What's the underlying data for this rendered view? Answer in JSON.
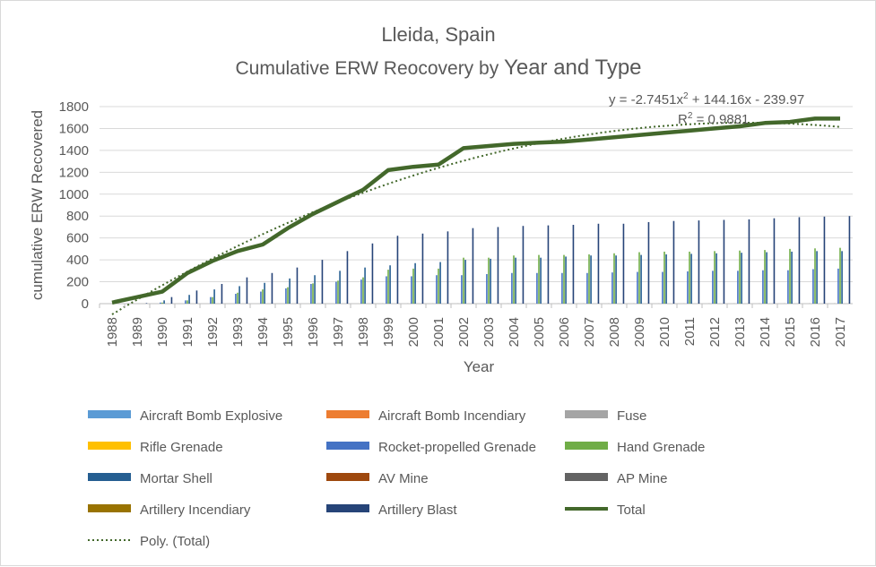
{
  "chart_data": {
    "type": "bar",
    "title": "Lleida, Spain",
    "subtitle_prefix": "Cumulative ERW Reocovery by ",
    "subtitle_suffix": "Year and Type",
    "xlabel": "Year",
    "ylabel": "cumulative ERW Recovered",
    "ylim": [
      0,
      1800
    ],
    "yticks": [
      0,
      200,
      400,
      600,
      800,
      1000,
      1200,
      1400,
      1600,
      1800
    ],
    "grid": true,
    "legend_position": "bottom",
    "categories": [
      "1988",
      "1989",
      "1990",
      "1991",
      "1992",
      "1993",
      "1994",
      "1995",
      "1996",
      "1997",
      "1998",
      "1999",
      "2000",
      "2001",
      "2002",
      "2003",
      "2004",
      "2005",
      "2006",
      "2007",
      "2008",
      "2009",
      "2010",
      "2011",
      "2012",
      "2013",
      "2014",
      "2015",
      "2016",
      "2017"
    ],
    "series": [
      {
        "name": "Aircraft Bomb Explosive",
        "color": "#5b9bd5",
        "kind": "bar",
        "values": [
          0,
          0,
          0,
          0,
          0,
          0,
          0,
          0,
          0,
          0,
          0,
          0,
          0,
          0,
          0,
          0,
          0,
          0,
          0,
          0,
          0,
          0,
          0,
          0,
          0,
          0,
          0,
          0,
          0,
          0
        ]
      },
      {
        "name": "Aircraft Bomb Incendiary",
        "color": "#ed7d31",
        "kind": "bar",
        "values": [
          0,
          0,
          0,
          0,
          0,
          0,
          0,
          0,
          0,
          0,
          0,
          0,
          0,
          0,
          0,
          0,
          0,
          0,
          0,
          0,
          0,
          0,
          0,
          0,
          0,
          0,
          0,
          0,
          0,
          0
        ]
      },
      {
        "name": "Fuse",
        "color": "#a5a5a5",
        "kind": "bar",
        "values": [
          0,
          0,
          0,
          0,
          0,
          0,
          0,
          0,
          0,
          0,
          0,
          2,
          2,
          2,
          2,
          2,
          2,
          2,
          2,
          2,
          2,
          2,
          2,
          2,
          3,
          3,
          3,
          3,
          3,
          3
        ]
      },
      {
        "name": "Rifle Grenade",
        "color": "#ffc000",
        "kind": "bar",
        "values": [
          0,
          0,
          0,
          0,
          0,
          0,
          0,
          0,
          0,
          0,
          0,
          0,
          0,
          0,
          0,
          0,
          0,
          0,
          0,
          0,
          0,
          0,
          0,
          0,
          0,
          0,
          0,
          0,
          0,
          0
        ]
      },
      {
        "name": "Rocket-propelled Grenade",
        "color": "#4472c4",
        "kind": "bar",
        "values": [
          0,
          0,
          10,
          30,
          60,
          90,
          110,
          140,
          180,
          200,
          220,
          250,
          250,
          260,
          260,
          270,
          280,
          280,
          280,
          280,
          285,
          290,
          290,
          295,
          300,
          300,
          305,
          305,
          315,
          320
        ]
      },
      {
        "name": "Hand Grenade",
        "color": "#70ad47",
        "kind": "bar",
        "values": [
          0,
          0,
          10,
          30,
          60,
          100,
          130,
          150,
          185,
          210,
          240,
          310,
          320,
          320,
          420,
          420,
          440,
          445,
          445,
          450,
          460,
          470,
          475,
          475,
          480,
          485,
          490,
          500,
          505,
          510
        ]
      },
      {
        "name": "Mortar Shell",
        "color": "#255e91",
        "kind": "bar",
        "values": [
          0,
          0,
          30,
          80,
          130,
          160,
          190,
          230,
          260,
          300,
          330,
          350,
          370,
          380,
          400,
          410,
          420,
          420,
          430,
          440,
          440,
          445,
          450,
          455,
          460,
          465,
          470,
          475,
          480,
          480
        ]
      },
      {
        "name": "AV Mine",
        "color": "#9e480e",
        "kind": "bar",
        "values": [
          0,
          0,
          0,
          0,
          0,
          0,
          0,
          0,
          0,
          0,
          0,
          0,
          0,
          0,
          0,
          0,
          0,
          0,
          0,
          0,
          0,
          0,
          0,
          0,
          0,
          0,
          0,
          0,
          0,
          0
        ]
      },
      {
        "name": "AP Mine",
        "color": "#636363",
        "kind": "bar",
        "values": [
          0,
          0,
          0,
          0,
          0,
          0,
          0,
          0,
          0,
          0,
          0,
          0,
          0,
          0,
          0,
          0,
          0,
          0,
          0,
          0,
          0,
          0,
          0,
          0,
          0,
          0,
          0,
          0,
          0,
          0
        ]
      },
      {
        "name": "Artillery Incendiary",
        "color": "#997300",
        "kind": "bar",
        "values": [
          0,
          0,
          0,
          0,
          0,
          0,
          0,
          0,
          0,
          0,
          0,
          0,
          0,
          0,
          0,
          0,
          0,
          0,
          0,
          0,
          0,
          0,
          0,
          0,
          0,
          0,
          0,
          0,
          0,
          0
        ]
      },
      {
        "name": "Artillery Blast",
        "color": "#264478",
        "kind": "bar",
        "values": [
          0,
          5,
          60,
          120,
          180,
          240,
          280,
          330,
          400,
          480,
          550,
          620,
          640,
          660,
          690,
          700,
          710,
          715,
          720,
          730,
          730,
          745,
          755,
          760,
          765,
          770,
          780,
          790,
          795,
          800
        ]
      },
      {
        "name": "Total",
        "color": "#43682b",
        "kind": "line",
        "values": [
          10,
          60,
          110,
          280,
          390,
          480,
          540,
          690,
          820,
          930,
          1040,
          1220,
          1250,
          1270,
          1420,
          1440,
          1460,
          1470,
          1480,
          1500,
          1520,
          1540,
          1560,
          1580,
          1600,
          1620,
          1650,
          1660,
          1690,
          1690
        ]
      },
      {
        "name": "Poly. (Total)",
        "color": "#43682b",
        "kind": "trendline",
        "coefficients": [
          -2.7451,
          144.16,
          -239.97
        ]
      }
    ],
    "annotations": {
      "equation_prefix": "y = -2.7451x",
      "equation_exp": "2",
      "equation_suffix": " + 144.16x - 239.97",
      "r2_prefix": "R",
      "r2_exp": "2",
      "r2_suffix": " = 0.9881"
    }
  }
}
